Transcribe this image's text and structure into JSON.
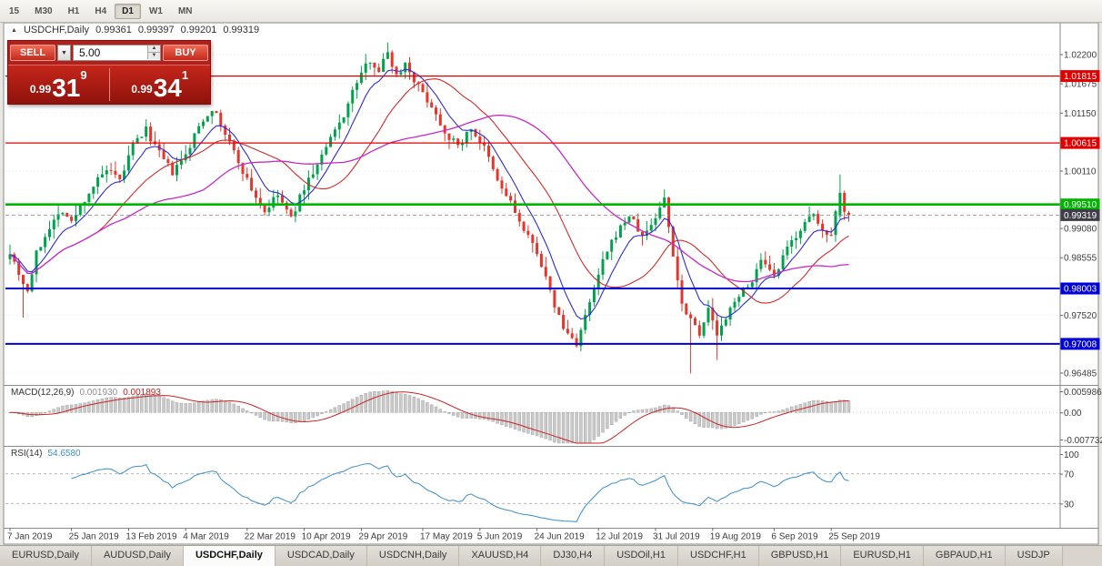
{
  "toolbar": {
    "timeframes": [
      {
        "label": "15",
        "active": false
      },
      {
        "label": "M30",
        "active": false
      },
      {
        "label": "H1",
        "active": false
      },
      {
        "label": "H4",
        "active": false
      },
      {
        "label": "D1",
        "active": true
      },
      {
        "label": "W1",
        "active": false
      },
      {
        "label": "MN",
        "active": false
      }
    ]
  },
  "chart_header": {
    "symbol": "USDCHF,Daily",
    "open": "0.99361",
    "high": "0.99397",
    "low": "0.99201",
    "close": "0.99319"
  },
  "trade_widget": {
    "sell_label": "SELL",
    "buy_label": "BUY",
    "lot_size": "5.00",
    "sell_price": {
      "prefix": "0.99",
      "big": "31",
      "sup": "9"
    },
    "buy_price": {
      "prefix": "0.99",
      "big": "34",
      "sup": "1"
    }
  },
  "price_axis": {
    "ticks": [
      "1.02200",
      "1.01675",
      "1.01150",
      "1.00110",
      "0.99080",
      "0.98555",
      "0.97520",
      "0.96485"
    ],
    "current_price": {
      "label": "0.99319",
      "price": 0.99319,
      "box_color": "#3f3f4a"
    }
  },
  "indicators": {
    "macd": {
      "label": "MACD(12,26,9)",
      "value_main": "0.001930",
      "value_signal": "0.001893",
      "axis_labels": [
        "0.005986",
        "0.00",
        "-0.007732"
      ]
    },
    "rsi": {
      "label": "RSI(14)",
      "value": "54.6580",
      "axis_labels": [
        "100",
        "70",
        "30"
      ]
    }
  },
  "date_axis": [
    {
      "label": "7 Jan 2019",
      "index": 0
    },
    {
      "label": "25 Jan 2019",
      "index": 14
    },
    {
      "label": "13 Feb 2019",
      "index": 27
    },
    {
      "label": "4 Mar 2019",
      "index": 40
    },
    {
      "label": "22 Mar 2019",
      "index": 54
    },
    {
      "label": "10 Apr 2019",
      "index": 67
    },
    {
      "label": "29 Apr 2019",
      "index": 80
    },
    {
      "label": "17 May 2019",
      "index": 94
    },
    {
      "label": "5 Jun 2019",
      "index": 107
    },
    {
      "label": "24 Jun 2019",
      "index": 120
    },
    {
      "label": "12 Jul 2019",
      "index": 134
    },
    {
      "label": "31 Jul 2019",
      "index": 147
    },
    {
      "label": "19 Aug 2019",
      "index": 160
    },
    {
      "label": "6 Sep 2019",
      "index": 174
    },
    {
      "label": "25 Sep 2019",
      "index": 187
    }
  ],
  "tabs": [
    {
      "label": "EURUSD,Daily",
      "active": false
    },
    {
      "label": "AUDUSD,Daily",
      "active": false
    },
    {
      "label": "USDCHF,Daily",
      "active": true
    },
    {
      "label": "USDCAD,Daily",
      "active": false
    },
    {
      "label": "USDCNH,Daily",
      "active": false
    },
    {
      "label": "XAUUSD,H4",
      "active": false
    },
    {
      "label": "DJ30,H4",
      "active": false
    },
    {
      "label": "USDOil,H1",
      "active": false
    },
    {
      "label": "USDCHF,H1",
      "active": false
    },
    {
      "label": "GBPUSD,H1",
      "active": false
    },
    {
      "label": "EURUSD,H1",
      "active": false
    },
    {
      "label": "GBPAUD,H1",
      "active": false
    },
    {
      "label": "USDJP",
      "active": false
    }
  ],
  "chart_data": {
    "type": "candlestick",
    "symbol": "USDCHF",
    "timeframe": "Daily",
    "candle_count": 192,
    "up_color": "#00a24b",
    "down_color": "#e6352b",
    "close_anchors": [
      [
        0,
        0.9868
      ],
      [
        2,
        0.9828
      ],
      [
        4,
        0.9795
      ],
      [
        6,
        0.9862
      ],
      [
        9,
        0.9912
      ],
      [
        12,
        0.9942
      ],
      [
        14,
        0.9918
      ],
      [
        16,
        0.9948
      ],
      [
        19,
        0.9985
      ],
      [
        22,
        1.0012
      ],
      [
        25,
        0.9992
      ],
      [
        28,
        1.0058
      ],
      [
        31,
        1.0085
      ],
      [
        34,
        1.0042
      ],
      [
        37,
        1.0008
      ],
      [
        40,
        1.0038
      ],
      [
        43,
        1.0092
      ],
      [
        46,
        1.0125
      ],
      [
        49,
        1.0078
      ],
      [
        52,
        1.0028
      ],
      [
        55,
        0.9978
      ],
      [
        58,
        0.9938
      ],
      [
        61,
        0.9968
      ],
      [
        64,
        0.9925
      ],
      [
        67,
        0.9982
      ],
      [
        70,
        1.0022
      ],
      [
        73,
        1.0068
      ],
      [
        76,
        1.0112
      ],
      [
        79,
        1.0172
      ],
      [
        82,
        1.0212
      ],
      [
        84,
        1.0192
      ],
      [
        86,
        1.0225
      ],
      [
        88,
        1.0182
      ],
      [
        90,
        1.0205
      ],
      [
        93,
        1.0162
      ],
      [
        96,
        1.0128
      ],
      [
        99,
        1.0082
      ],
      [
        102,
        1.0055
      ],
      [
        105,
        1.0088
      ],
      [
        108,
        1.0052
      ],
      [
        111,
        0.9992
      ],
      [
        114,
        0.9955
      ],
      [
        117,
        0.9902
      ],
      [
        120,
        0.9868
      ],
      [
        123,
        0.9792
      ],
      [
        126,
        0.9728
      ],
      [
        129,
        0.9702
      ],
      [
        132,
        0.9772
      ],
      [
        135,
        0.9848
      ],
      [
        138,
        0.9898
      ],
      [
        141,
        0.9932
      ],
      [
        144,
        0.9892
      ],
      [
        147,
        0.9928
      ],
      [
        149,
        0.9962
      ],
      [
        151,
        0.9862
      ],
      [
        153,
        0.9772
      ],
      [
        155,
        0.9748
      ],
      [
        157,
        0.9722
      ],
      [
        159,
        0.9762
      ],
      [
        161,
        0.9718
      ],
      [
        163,
        0.9742
      ],
      [
        165,
        0.9782
      ],
      [
        168,
        0.9802
      ],
      [
        171,
        0.9848
      ],
      [
        174,
        0.9818
      ],
      [
        177,
        0.9872
      ],
      [
        180,
        0.9908
      ],
      [
        183,
        0.9932
      ],
      [
        185,
        0.9902
      ],
      [
        187,
        0.9902
      ],
      [
        189,
        0.9972
      ],
      [
        191,
        0.9932
      ]
    ],
    "wick_overrides": {
      "3": {
        "low": 0.9748
      },
      "86": {
        "high": 1.0232
      },
      "129": {
        "low": 0.9694
      },
      "149": {
        "high": 0.9978
      },
      "155": {
        "low": 0.9648
      },
      "161": {
        "low": 0.9672
      }
    },
    "exact_candles": [
      {
        "index": 189,
        "open": 0.993,
        "high": 1.0005,
        "low": 0.9925,
        "close": 0.9972
      },
      {
        "index": 190,
        "open": 0.9972,
        "high": 0.9976,
        "low": 0.9923,
        "close": 0.9938
      },
      {
        "index": 191,
        "open": 0.99361,
        "high": 0.99397,
        "low": 0.99201,
        "close": 0.99319
      }
    ],
    "horizontal_levels": [
      {
        "price": 1.01815,
        "label": "1.01815",
        "color": "#e00000",
        "width": 1.3
      },
      {
        "price": 1.00615,
        "label": "1.00615",
        "color": "#e00000",
        "width": 1.3
      },
      {
        "price": 0.9951,
        "label": "0.99510",
        "color": "#00b400",
        "width": 2.6
      },
      {
        "price": 0.98003,
        "label": "0.98003",
        "color": "#0000d8",
        "width": 2
      },
      {
        "price": 0.97008,
        "label": "0.97008",
        "color": "#0000d8",
        "width": 2
      }
    ],
    "moving_averages": [
      {
        "method": "ema",
        "period": 8,
        "color": "#2b2bde",
        "width": 1.1
      },
      {
        "method": "sma",
        "period": 21,
        "color": "#d42a2a",
        "width": 1.1
      },
      {
        "method": "sma",
        "period": 45,
        "color": "#c62ac6",
        "width": 1.3
      }
    ],
    "macd": {
      "fast": 12,
      "slow": 26,
      "signal": 9,
      "histogram_color": "#c9c9c9",
      "signal_color": "#cc2222",
      "scale_max": 0.005986,
      "scale_min": -0.007732
    },
    "rsi": {
      "period": 14,
      "line_color": "#3c8dcb",
      "levels": [
        70,
        30
      ]
    }
  }
}
